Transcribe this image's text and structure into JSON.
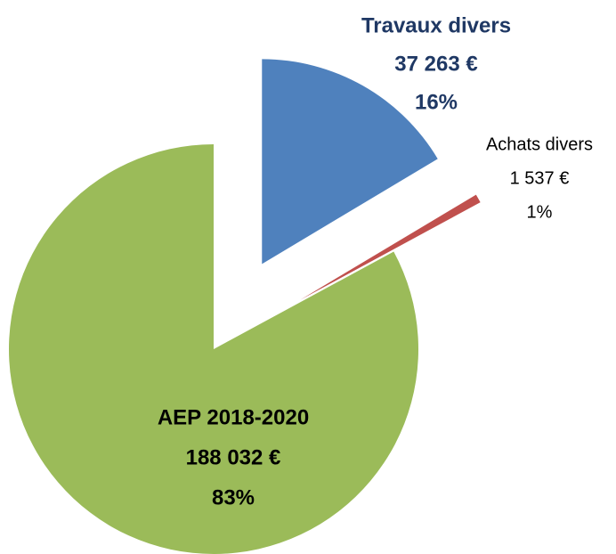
{
  "chart_data": {
    "type": "pie",
    "categories": [
      "Travaux divers",
      "Achats divers",
      "AEP 2018-2020"
    ],
    "values": [
      37263,
      1537,
      188032
    ],
    "value_labels": [
      "37 263 €",
      "1 537 €",
      "188 032 €"
    ],
    "percentages": [
      16,
      1,
      83
    ],
    "percentage_labels": [
      "16%",
      "1%",
      "83%"
    ],
    "colors": [
      "#4f81bd",
      "#c0504d",
      "#9bbb59"
    ]
  }
}
